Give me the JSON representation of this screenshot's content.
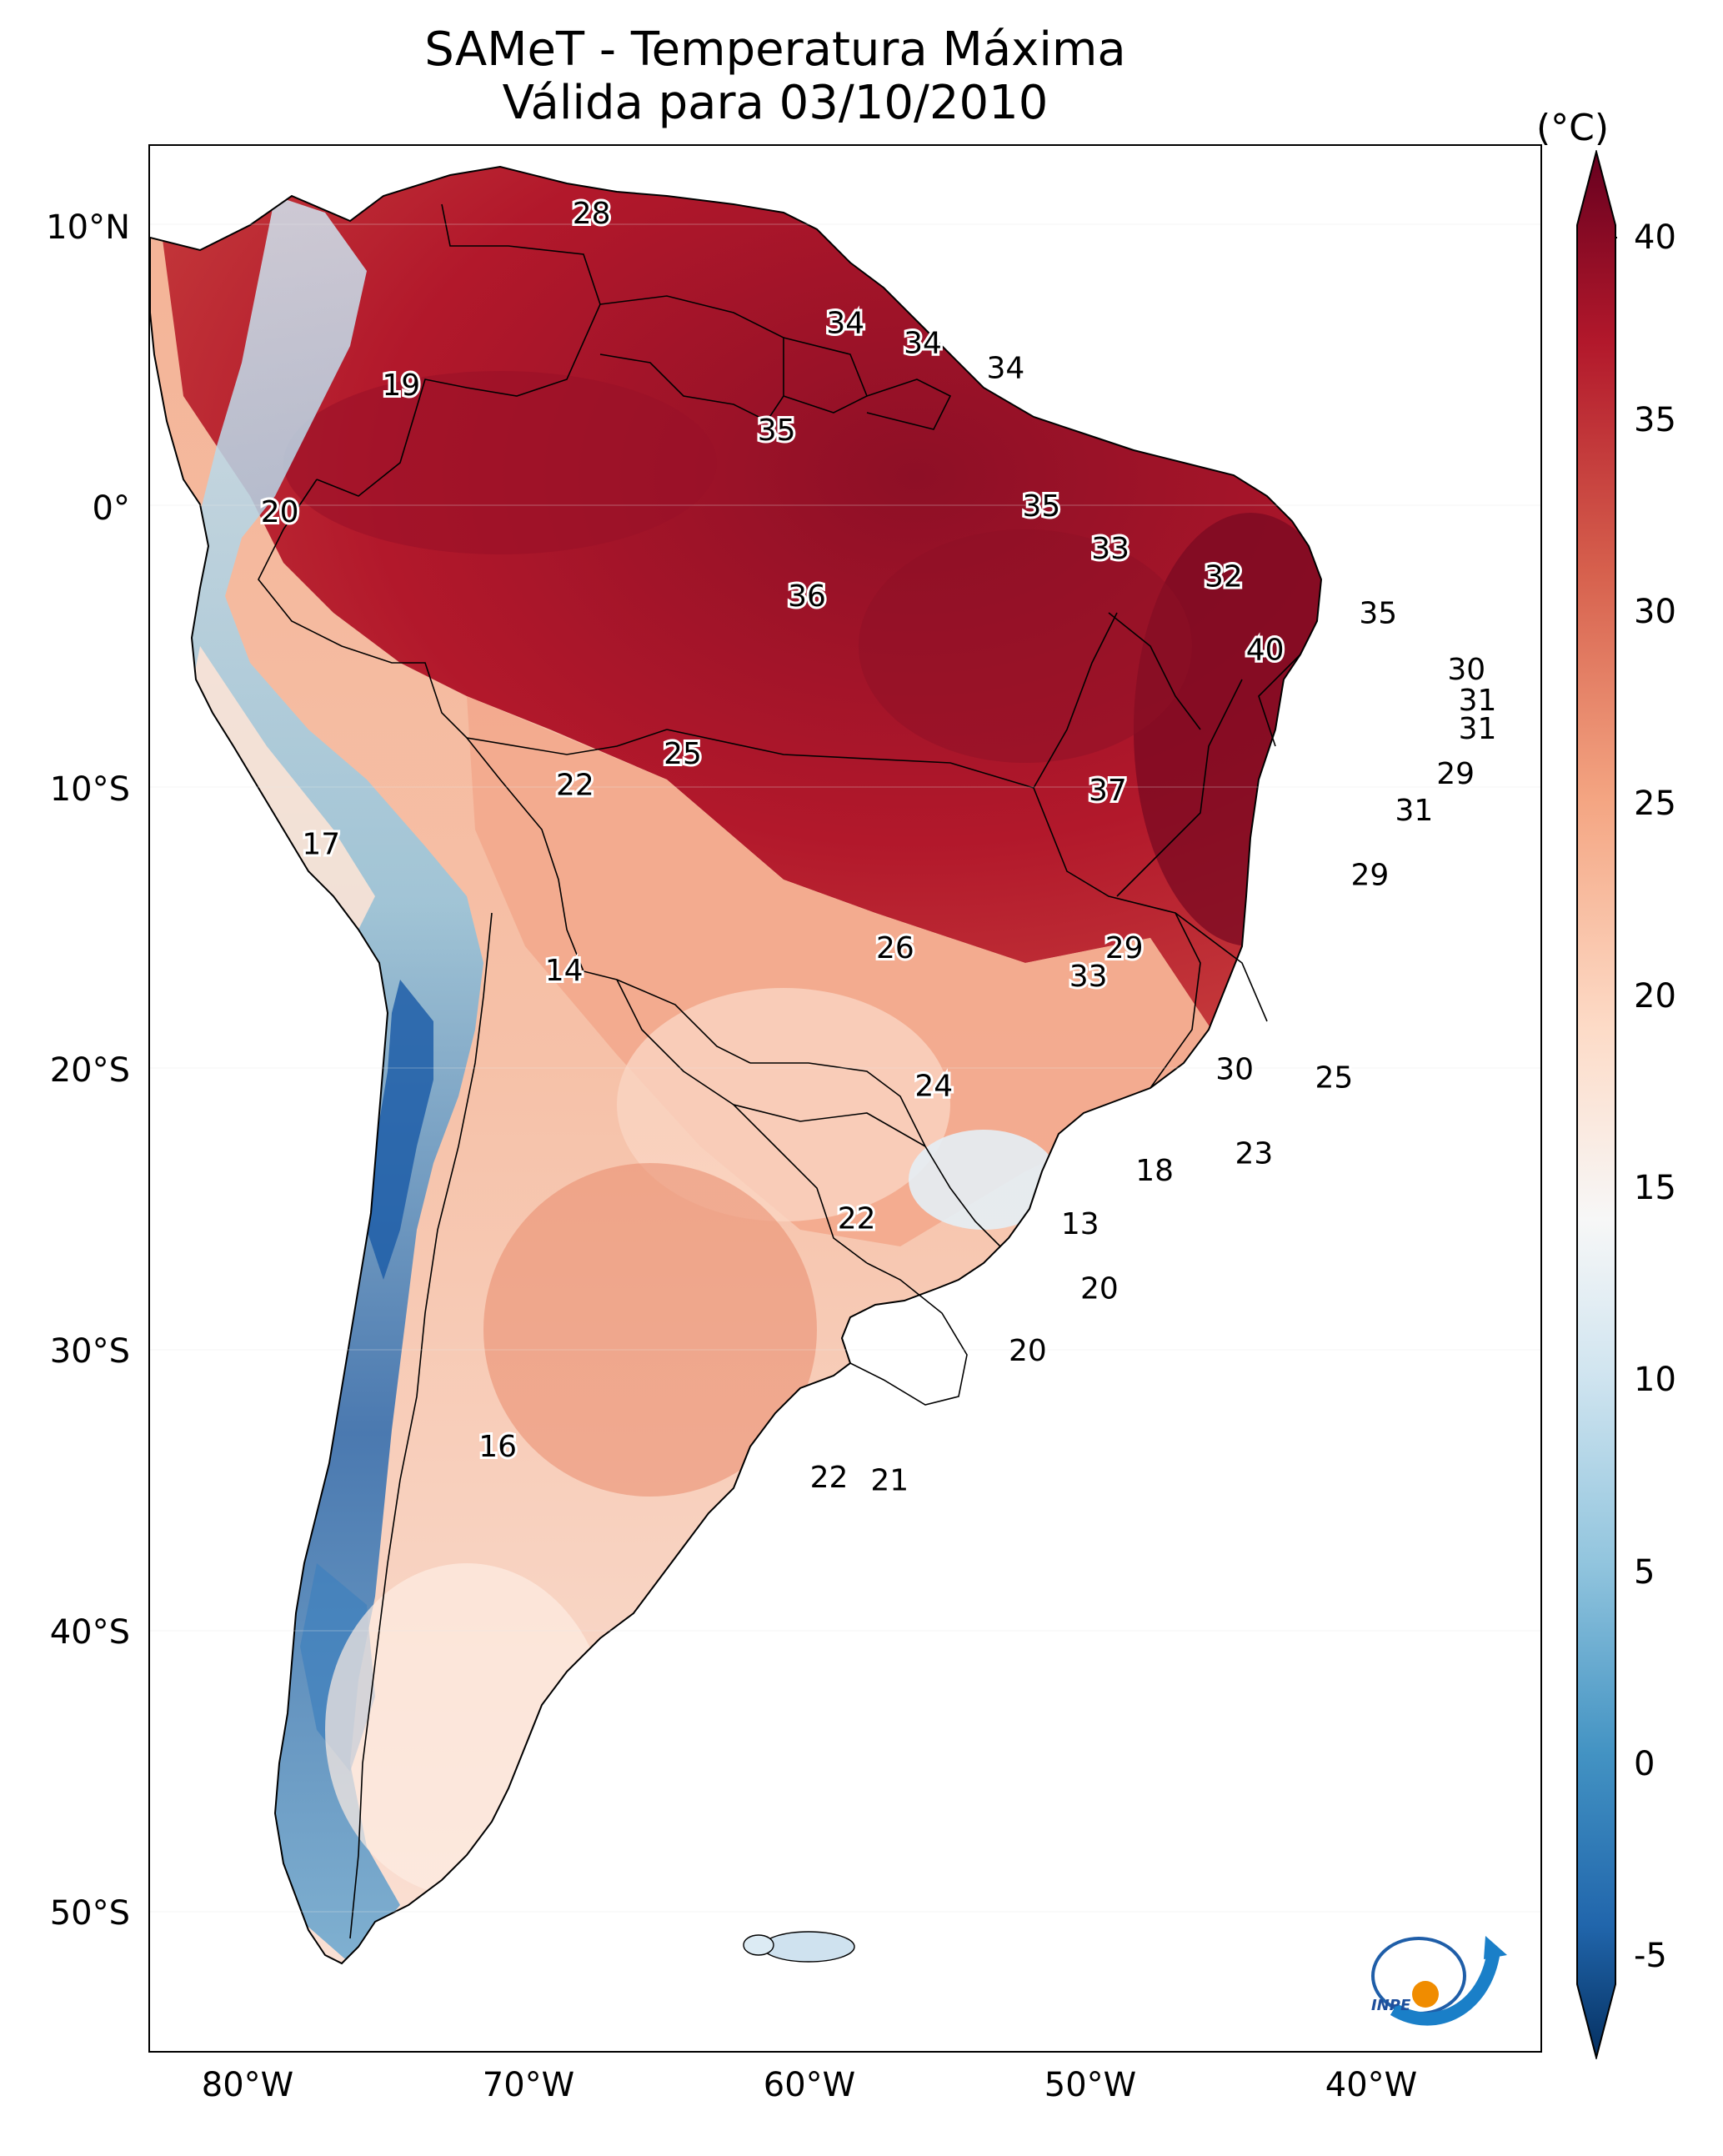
{
  "title": {
    "line1": "SAMeT - Temperatura Máxima",
    "line2": "Válida para 03/10/2010"
  },
  "colorbar": {
    "unit": "(°C)",
    "ticks": [
      "40",
      "35",
      "30",
      "25",
      "20",
      "15",
      "10",
      "5",
      "0",
      "-5"
    ],
    "range": [
      -5,
      40
    ],
    "colors": [
      "#053061",
      "#2166ac",
      "#4393c3",
      "#92c5de",
      "#d1e5f0",
      "#f7f7f7",
      "#fddbc7",
      "#f4a582",
      "#d6604d",
      "#b2182b",
      "#67001f"
    ]
  },
  "axes": {
    "lat_labels": [
      "10°N",
      "0°",
      "10°S",
      "20°S",
      "30°S",
      "40°S",
      "50°S"
    ],
    "lon_labels": [
      "80°W",
      "70°W",
      "60°W",
      "50°W",
      "40°W"
    ]
  },
  "temperature_labels": [
    {
      "value": "28",
      "lon": -67.0,
      "lat": 10.4
    },
    {
      "value": "34",
      "lon": -57.8,
      "lat": 6.5
    },
    {
      "value": "34",
      "lon": -55.0,
      "lat": 5.8
    },
    {
      "value": "34",
      "lon": -52.0,
      "lat": 4.9
    },
    {
      "value": "19",
      "lon": -73.9,
      "lat": 4.3
    },
    {
      "value": "35",
      "lon": -60.3,
      "lat": 2.7
    },
    {
      "value": "35",
      "lon": -50.7,
      "lat": 0.0
    },
    {
      "value": "20",
      "lon": -78.3,
      "lat": -0.2
    },
    {
      "value": "33",
      "lon": -48.2,
      "lat": -1.5
    },
    {
      "value": "32",
      "lon": -44.1,
      "lat": -2.5
    },
    {
      "value": "36",
      "lon": -59.2,
      "lat": -3.2
    },
    {
      "value": "35",
      "lon": -38.5,
      "lat": -3.8
    },
    {
      "value": "40",
      "lon": -42.6,
      "lat": -5.1
    },
    {
      "value": "30",
      "lon": -35.3,
      "lat": -5.8
    },
    {
      "value": "31",
      "lon": -34.9,
      "lat": -6.9
    },
    {
      "value": "31",
      "lon": -34.9,
      "lat": -7.9
    },
    {
      "value": "25",
      "lon": -63.7,
      "lat": -8.8
    },
    {
      "value": "22",
      "lon": -67.6,
      "lat": -9.9
    },
    {
      "value": "29",
      "lon": -35.7,
      "lat": -9.5
    },
    {
      "value": "37",
      "lon": -48.3,
      "lat": -10.1
    },
    {
      "value": "31",
      "lon": -37.2,
      "lat": -10.8
    },
    {
      "value": "17",
      "lon": -76.8,
      "lat": -12.0
    },
    {
      "value": "29",
      "lon": -38.8,
      "lat": -13.1
    },
    {
      "value": "26",
      "lon": -56.0,
      "lat": -15.7
    },
    {
      "value": "29",
      "lon": -47.7,
      "lat": -15.7
    },
    {
      "value": "33",
      "lon": -49.0,
      "lat": -16.7
    },
    {
      "value": "14",
      "lon": -68.0,
      "lat": -16.5
    },
    {
      "value": "30",
      "lon": -43.7,
      "lat": -20.0
    },
    {
      "value": "25",
      "lon": -40.1,
      "lat": -20.3
    },
    {
      "value": "24",
      "lon": -54.6,
      "lat": -20.6
    },
    {
      "value": "23",
      "lon": -43.0,
      "lat": -23.0
    },
    {
      "value": "18",
      "lon": -46.6,
      "lat": -23.6
    },
    {
      "value": "22",
      "lon": -57.4,
      "lat": -25.3
    },
    {
      "value": "13",
      "lon": -49.3,
      "lat": -25.5
    },
    {
      "value": "20",
      "lon": -48.6,
      "lat": -27.8
    },
    {
      "value": "20",
      "lon": -51.2,
      "lat": -30.0
    },
    {
      "value": "16",
      "lon": -70.4,
      "lat": -33.4
    },
    {
      "value": "22",
      "lon": -58.4,
      "lat": -34.5
    },
    {
      "value": "21",
      "lon": -56.2,
      "lat": -34.6
    }
  ],
  "logo": {
    "text": "INPE"
  }
}
